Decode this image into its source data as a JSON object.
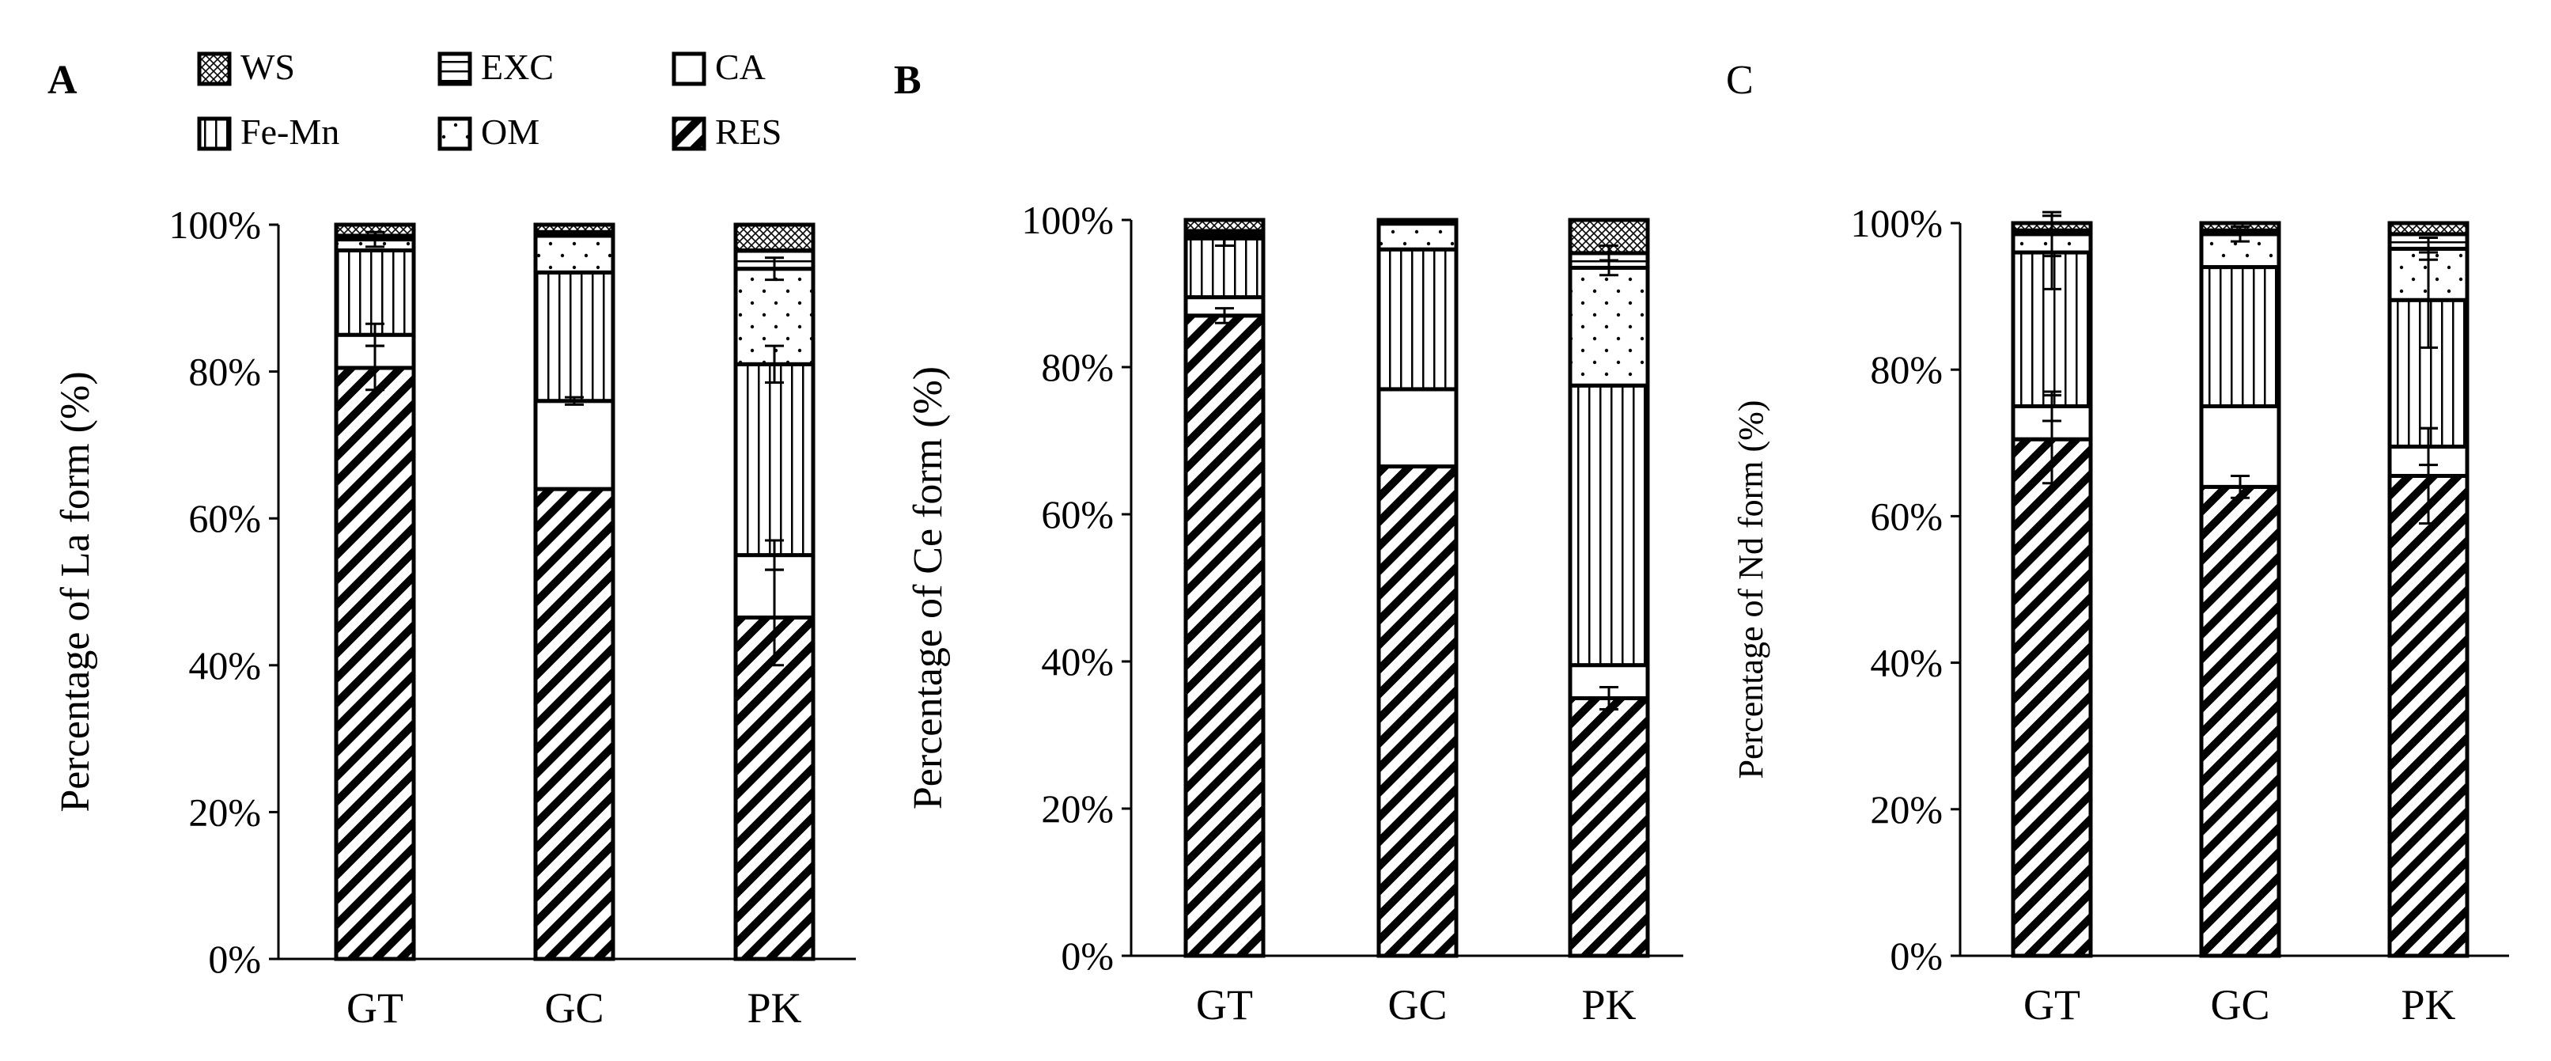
{
  "legend": [
    {
      "key": "WS",
      "label": "WS",
      "pattern": "crosshatch"
    },
    {
      "key": "EXC",
      "label": "EXC",
      "pattern": "horizontal"
    },
    {
      "key": "CA",
      "label": "CA",
      "pattern": "blank"
    },
    {
      "key": "FeMn",
      "label": "Fe-Mn",
      "pattern": "vertical"
    },
    {
      "key": "OM",
      "label": "OM",
      "pattern": "dots"
    },
    {
      "key": "RES",
      "label": "RES",
      "pattern": "diagonal"
    }
  ],
  "colors": {
    "ink": "#000000",
    "background": "#ffffff"
  },
  "chart_data": [
    {
      "type": "bar",
      "stacked": true,
      "panel": "A",
      "title": "",
      "ylabel": "Percentage of La form (%)",
      "yticks": [
        "0%",
        "20%",
        "40%",
        "60%",
        "80%",
        "100%"
      ],
      "ylim": [
        0,
        100
      ],
      "categories": [
        "GT",
        "GC",
        "PK"
      ],
      "series": [
        {
          "name": "RES",
          "values": [
            80.5,
            64,
            46.5
          ],
          "error": [
            3,
            0,
            6.5
          ]
        },
        {
          "name": "CA",
          "values": [
            4.5,
            12,
            8.5
          ],
          "error": [
            1.5,
            0.5,
            2
          ]
        },
        {
          "name": "Fe-Mn",
          "values": [
            11.5,
            17.5,
            26
          ],
          "error": [
            0,
            0,
            2.5
          ]
        },
        {
          "name": "OM",
          "values": [
            1.5,
            5,
            13
          ],
          "error": [
            1,
            0,
            1.5
          ]
        },
        {
          "name": "EXC",
          "values": [
            0.5,
            0.5,
            2.5
          ],
          "error": [
            0,
            0,
            0
          ]
        },
        {
          "name": "WS",
          "values": [
            1.5,
            1,
            3.5
          ],
          "error": [
            0,
            0,
            0
          ]
        }
      ]
    },
    {
      "type": "bar",
      "stacked": true,
      "panel": "B",
      "title": "",
      "ylabel": "Percentage of Ce form (%)",
      "yticks": [
        "0%",
        "20%",
        "40%",
        "60%",
        "80%",
        "100%"
      ],
      "ylim": [
        0,
        100
      ],
      "categories": [
        "GT",
        "GC",
        "PK"
      ],
      "series": [
        {
          "name": "RES",
          "values": [
            87,
            66.5,
            35
          ],
          "error": [
            1,
            0,
            1.5
          ]
        },
        {
          "name": "CA",
          "values": [
            2.5,
            10.5,
            4.5
          ],
          "error": [
            0,
            0,
            0
          ]
        },
        {
          "name": "Fe-Mn",
          "values": [
            8,
            19,
            38
          ],
          "error": [
            1,
            0,
            0
          ]
        },
        {
          "name": "OM",
          "values": [
            0.5,
            3.5,
            16
          ],
          "error": [
            0,
            0,
            1
          ]
        },
        {
          "name": "EXC",
          "values": [
            0.5,
            0.3,
            2
          ],
          "error": [
            0,
            0,
            1
          ]
        },
        {
          "name": "WS",
          "values": [
            1.5,
            0.2,
            4.5
          ],
          "error": [
            0,
            0,
            0
          ]
        }
      ]
    },
    {
      "type": "bar",
      "stacked": true,
      "panel": "C",
      "title": "",
      "ylabel": "Percentage of Nd form (%)",
      "yticks": [
        "0%",
        "20%",
        "40%",
        "60%",
        "80%",
        "100%"
      ],
      "ylim": [
        0,
        100
      ],
      "categories": [
        "GT",
        "GC",
        "PK"
      ],
      "series": [
        {
          "name": "RES",
          "values": [
            70.5,
            64,
            65.5
          ],
          "error": [
            6,
            1.5,
            6.5
          ]
        },
        {
          "name": "CA",
          "values": [
            4.5,
            11,
            4
          ],
          "error": [
            2,
            0,
            2.5
          ]
        },
        {
          "name": "Fe-Mn",
          "values": [
            21,
            19,
            20
          ],
          "error": [
            5,
            0,
            6.5
          ]
        },
        {
          "name": "OM",
          "values": [
            2.5,
            4.5,
            7
          ],
          "error": [
            3,
            1,
            1.5
          ]
        },
        {
          "name": "EXC",
          "values": [
            0.5,
            0.5,
            2
          ],
          "error": [
            0,
            0,
            0
          ]
        },
        {
          "name": "WS",
          "values": [
            1,
            1,
            1.5
          ],
          "error": [
            0,
            0,
            0
          ]
        }
      ]
    }
  ]
}
